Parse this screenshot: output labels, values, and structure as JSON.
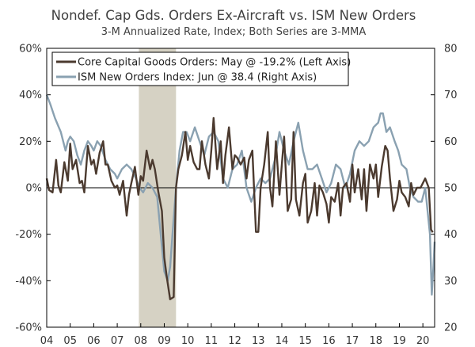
{
  "chart_data": {
    "type": "line",
    "title": "Nondef. Cap Gds. Orders Ex-Aircraft vs. ISM New Orders",
    "subtitle": "3-M Annualized Rate, Index; Both Series are 3-MMA",
    "x_range": [
      2004.0,
      2020.5
    ],
    "x_tick_labels": [
      "04",
      "05",
      "06",
      "07",
      "08",
      "09",
      "10",
      "11",
      "12",
      "13",
      "14",
      "15",
      "16",
      "17",
      "18",
      "19",
      "20"
    ],
    "left_axis": {
      "ylim": [
        -60,
        60
      ],
      "ticks": [
        -60,
        -40,
        -20,
        0,
        20,
        40,
        60
      ],
      "tick_labels": [
        "-60%",
        "-40%",
        "-20%",
        "0%",
        "20%",
        "40%",
        "60%"
      ]
    },
    "right_axis": {
      "ylim": [
        20,
        80
      ],
      "ticks": [
        20,
        30,
        40,
        50,
        60,
        70,
        80
      ],
      "tick_labels": [
        "20",
        "30",
        "40",
        "50",
        "60",
        "70",
        "80"
      ]
    },
    "recession": {
      "start": 2007.92,
      "end": 2009.5,
      "color": "#d6d2c4"
    },
    "legend": {
      "placement": "top-left"
    },
    "series": [
      {
        "name": "Core Capital Goods Orders: May @ -19.2% (Left Axis)",
        "axis": "left",
        "color": "#4b3a2f",
        "points": [
          [
            2004.0,
            4
          ],
          [
            2004.1,
            -1
          ],
          [
            2004.25,
            -2
          ],
          [
            2004.4,
            12
          ],
          [
            2004.5,
            1
          ],
          [
            2004.6,
            -2
          ],
          [
            2004.75,
            11
          ],
          [
            2004.9,
            3
          ],
          [
            2005.0,
            19
          ],
          [
            2005.1,
            8
          ],
          [
            2005.25,
            12
          ],
          [
            2005.4,
            2
          ],
          [
            2005.5,
            3
          ],
          [
            2005.6,
            -2
          ],
          [
            2005.75,
            18
          ],
          [
            2005.9,
            10
          ],
          [
            2006.0,
            12
          ],
          [
            2006.1,
            6
          ],
          [
            2006.25,
            15
          ],
          [
            2006.4,
            20
          ],
          [
            2006.5,
            10
          ],
          [
            2006.6,
            10
          ],
          [
            2006.75,
            3
          ],
          [
            2006.9,
            0
          ],
          [
            2007.0,
            1
          ],
          [
            2007.1,
            -3
          ],
          [
            2007.25,
            3
          ],
          [
            2007.4,
            -12
          ],
          [
            2007.5,
            -3
          ],
          [
            2007.6,
            2
          ],
          [
            2007.75,
            9
          ],
          [
            2007.9,
            -3
          ],
          [
            2008.0,
            5
          ],
          [
            2008.1,
            3
          ],
          [
            2008.25,
            16
          ],
          [
            2008.4,
            8
          ],
          [
            2008.5,
            12
          ],
          [
            2008.6,
            8
          ],
          [
            2008.75,
            -2
          ],
          [
            2008.9,
            -10
          ],
          [
            2009.0,
            -30
          ],
          [
            2009.1,
            -38
          ],
          [
            2009.25,
            -48
          ],
          [
            2009.4,
            -47
          ],
          [
            2009.5,
            0
          ],
          [
            2009.6,
            8
          ],
          [
            2009.75,
            14
          ],
          [
            2009.9,
            24
          ],
          [
            2010.0,
            12
          ],
          [
            2010.1,
            18
          ],
          [
            2010.25,
            11
          ],
          [
            2010.4,
            8
          ],
          [
            2010.5,
            8
          ],
          [
            2010.6,
            20
          ],
          [
            2010.75,
            10
          ],
          [
            2010.9,
            4
          ],
          [
            2011.0,
            16
          ],
          [
            2011.1,
            30
          ],
          [
            2011.25,
            8
          ],
          [
            2011.4,
            20
          ],
          [
            2011.5,
            2
          ],
          [
            2011.6,
            14
          ],
          [
            2011.75,
            26
          ],
          [
            2011.9,
            8
          ],
          [
            2012.0,
            14
          ],
          [
            2012.1,
            13
          ],
          [
            2012.25,
            10
          ],
          [
            2012.4,
            13
          ],
          [
            2012.5,
            4
          ],
          [
            2012.6,
            12
          ],
          [
            2012.75,
            16
          ],
          [
            2012.9,
            -19
          ],
          [
            2013.0,
            -19
          ],
          [
            2013.1,
            0
          ],
          [
            2013.25,
            10
          ],
          [
            2013.4,
            24
          ],
          [
            2013.5,
            0
          ],
          [
            2013.6,
            -8
          ],
          [
            2013.75,
            20
          ],
          [
            2013.9,
            -3
          ],
          [
            2014.0,
            10
          ],
          [
            2014.1,
            22
          ],
          [
            2014.25,
            -10
          ],
          [
            2014.4,
            -5
          ],
          [
            2014.5,
            24
          ],
          [
            2014.6,
            -5
          ],
          [
            2014.75,
            -12
          ],
          [
            2014.9,
            2
          ],
          [
            2015.0,
            6
          ],
          [
            2015.1,
            -15
          ],
          [
            2015.25,
            -10
          ],
          [
            2015.4,
            2
          ],
          [
            2015.5,
            -12
          ],
          [
            2015.6,
            1
          ],
          [
            2015.75,
            -2
          ],
          [
            2015.9,
            -7
          ],
          [
            2016.0,
            -15
          ],
          [
            2016.1,
            -4
          ],
          [
            2016.25,
            -6
          ],
          [
            2016.4,
            2
          ],
          [
            2016.5,
            -12
          ],
          [
            2016.6,
            0
          ],
          [
            2016.75,
            2
          ],
          [
            2016.9,
            -6
          ],
          [
            2017.0,
            10
          ],
          [
            2017.1,
            -2
          ],
          [
            2017.25,
            8
          ],
          [
            2017.4,
            -5
          ],
          [
            2017.5,
            8
          ],
          [
            2017.6,
            -10
          ],
          [
            2017.75,
            10
          ],
          [
            2017.9,
            4
          ],
          [
            2018.0,
            10
          ],
          [
            2018.1,
            -4
          ],
          [
            2018.25,
            9
          ],
          [
            2018.4,
            18
          ],
          [
            2018.5,
            16
          ],
          [
            2018.6,
            4
          ],
          [
            2018.75,
            -10
          ],
          [
            2018.9,
            -5
          ],
          [
            2019.0,
            3
          ],
          [
            2019.1,
            -2
          ],
          [
            2019.25,
            -4
          ],
          [
            2019.4,
            -8
          ],
          [
            2019.5,
            2
          ],
          [
            2019.6,
            -3
          ],
          [
            2019.75,
            0
          ],
          [
            2019.9,
            0
          ],
          [
            2020.0,
            2
          ],
          [
            2020.1,
            4
          ],
          [
            2020.25,
            0
          ],
          [
            2020.35,
            -18
          ],
          [
            2020.42,
            -19.2
          ]
        ]
      },
      {
        "name": "ISM New Orders Index: Jun @ 38.4 (Right Axis)",
        "axis": "right",
        "color": "#8aa1b1",
        "points": [
          [
            2004.0,
            70
          ],
          [
            2004.15,
            68
          ],
          [
            2004.35,
            65
          ],
          [
            2004.6,
            62
          ],
          [
            2004.8,
            58
          ],
          [
            2004.9,
            60
          ],
          [
            2005.0,
            61
          ],
          [
            2005.15,
            60
          ],
          [
            2005.3,
            57
          ],
          [
            2005.45,
            55
          ],
          [
            2005.6,
            58
          ],
          [
            2005.75,
            60
          ],
          [
            2005.9,
            59
          ],
          [
            2006.0,
            58
          ],
          [
            2006.15,
            60
          ],
          [
            2006.3,
            59
          ],
          [
            2006.5,
            56
          ],
          [
            2006.7,
            54
          ],
          [
            2006.9,
            53
          ],
          [
            2007.0,
            52
          ],
          [
            2007.2,
            54
          ],
          [
            2007.4,
            55
          ],
          [
            2007.6,
            54
          ],
          [
            2007.8,
            52
          ],
          [
            2007.95,
            50
          ],
          [
            2008.1,
            49
          ],
          [
            2008.3,
            51
          ],
          [
            2008.5,
            50
          ],
          [
            2008.7,
            48
          ],
          [
            2008.85,
            40
          ],
          [
            2009.0,
            32
          ],
          [
            2009.15,
            30
          ],
          [
            2009.25,
            33
          ],
          [
            2009.35,
            40
          ],
          [
            2009.5,
            50
          ],
          [
            2009.65,
            58
          ],
          [
            2009.8,
            62
          ],
          [
            2009.95,
            62
          ],
          [
            2010.1,
            60
          ],
          [
            2010.3,
            63
          ],
          [
            2010.5,
            60
          ],
          [
            2010.7,
            57
          ],
          [
            2010.9,
            61
          ],
          [
            2011.1,
            62
          ],
          [
            2011.3,
            60
          ],
          [
            2011.5,
            52
          ],
          [
            2011.7,
            50
          ],
          [
            2011.9,
            54
          ],
          [
            2012.1,
            55
          ],
          [
            2012.3,
            58
          ],
          [
            2012.5,
            50
          ],
          [
            2012.7,
            47
          ],
          [
            2012.9,
            50
          ],
          [
            2013.1,
            52
          ],
          [
            2013.3,
            51
          ],
          [
            2013.5,
            52
          ],
          [
            2013.7,
            56
          ],
          [
            2013.9,
            62
          ],
          [
            2014.1,
            58
          ],
          [
            2014.3,
            55
          ],
          [
            2014.5,
            60
          ],
          [
            2014.7,
            64
          ],
          [
            2014.9,
            58
          ],
          [
            2015.1,
            54
          ],
          [
            2015.3,
            54
          ],
          [
            2015.5,
            55
          ],
          [
            2015.7,
            52
          ],
          [
            2015.9,
            49
          ],
          [
            2016.1,
            51
          ],
          [
            2016.3,
            55
          ],
          [
            2016.5,
            54
          ],
          [
            2016.7,
            50
          ],
          [
            2016.9,
            53
          ],
          [
            2017.1,
            58
          ],
          [
            2017.3,
            60
          ],
          [
            2017.5,
            59
          ],
          [
            2017.7,
            60
          ],
          [
            2017.9,
            63
          ],
          [
            2018.1,
            64
          ],
          [
            2018.2,
            66
          ],
          [
            2018.3,
            66
          ],
          [
            2018.45,
            62
          ],
          [
            2018.6,
            63
          ],
          [
            2018.8,
            60
          ],
          [
            2018.95,
            58
          ],
          [
            2019.1,
            55
          ],
          [
            2019.3,
            54
          ],
          [
            2019.45,
            50
          ],
          [
            2019.6,
            48
          ],
          [
            2019.8,
            47
          ],
          [
            2019.95,
            47
          ],
          [
            2020.1,
            50
          ],
          [
            2020.2,
            45
          ],
          [
            2020.3,
            40
          ],
          [
            2020.38,
            27
          ],
          [
            2020.45,
            33
          ],
          [
            2020.5,
            38.4
          ]
        ]
      }
    ]
  }
}
